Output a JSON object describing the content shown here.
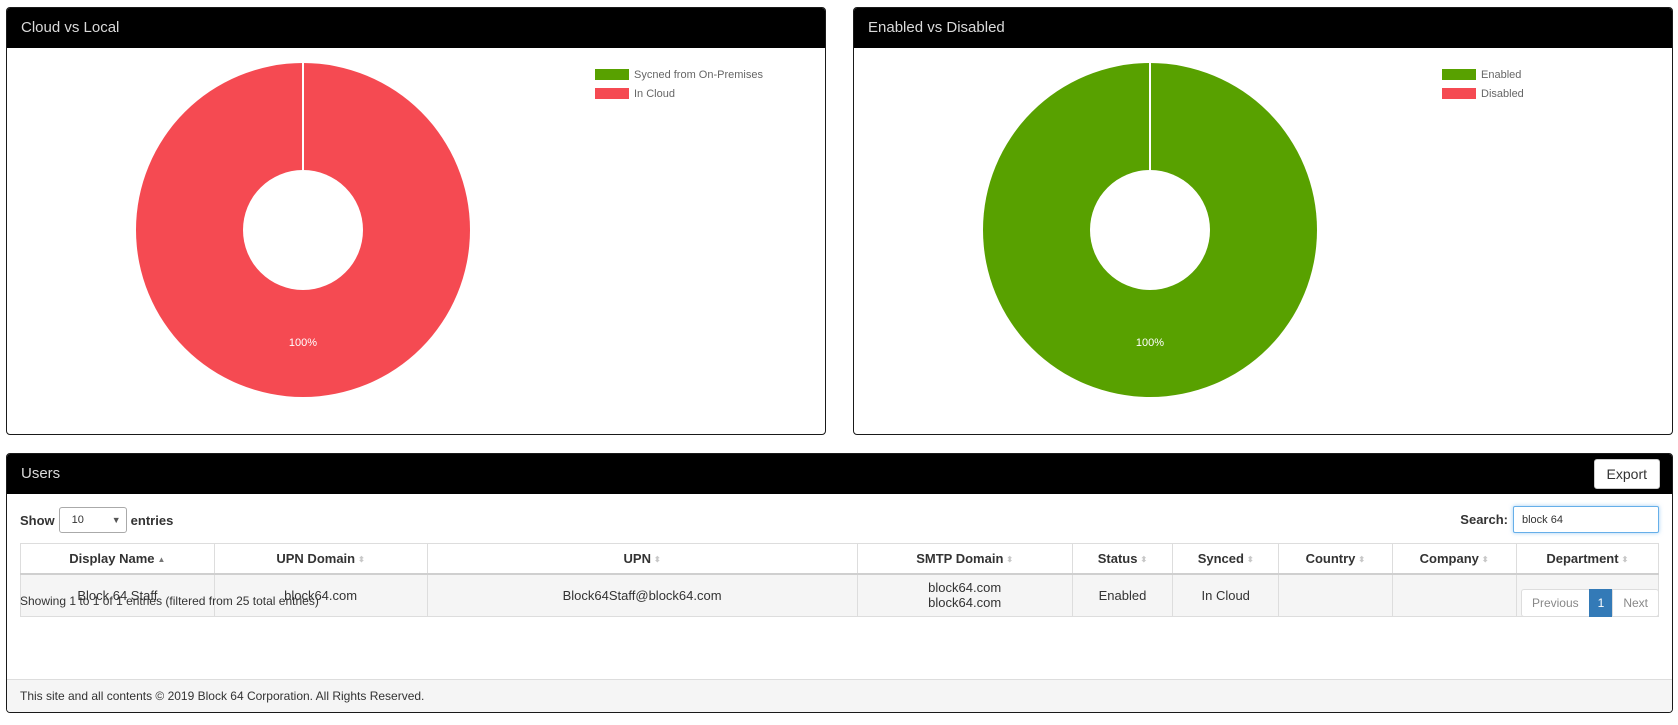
{
  "panels": {
    "cloud_vs_local": {
      "title": "Cloud vs Local"
    },
    "enabled_vs_disabled": {
      "title": "Enabled vs Disabled"
    },
    "users": {
      "title": "Users",
      "export_label": "Export"
    }
  },
  "chart_data": [
    {
      "type": "pie",
      "title": "Cloud vs Local",
      "categories": [
        "Sycned from On-Premises",
        "In Cloud"
      ],
      "values": [
        0,
        100
      ],
      "colors": [
        "#58a100",
        "#f54a52"
      ],
      "slice_label": "100%",
      "legend_position": "top-right"
    },
    {
      "type": "pie",
      "title": "Enabled vs Disabled",
      "categories": [
        "Enabled",
        "Disabled"
      ],
      "values": [
        100,
        0
      ],
      "colors": [
        "#58a100",
        "#f54a52"
      ],
      "slice_label": "100%",
      "legend_position": "top-right"
    }
  ],
  "table_controls": {
    "show_label": "Show",
    "entries_value": "10",
    "entries_label": "entries",
    "search_label": "Search:",
    "search_value": "block 64"
  },
  "table": {
    "columns": [
      "Display Name",
      "UPN Domain",
      "UPN",
      "SMTP Domain",
      "Status",
      "Synced",
      "Country",
      "Company",
      "Department"
    ],
    "rows": [
      {
        "display_name": "Block 64 Staff",
        "upn_domain": "block64.com",
        "upn": "Block64Staff@block64.com",
        "smtp_domain_1": "block64.com",
        "smtp_domain_2": "block64.com",
        "status": "Enabled",
        "synced": "In Cloud",
        "country": "",
        "company": "",
        "department": ""
      }
    ]
  },
  "table_info": "Showing 1 to 1 of 1 entries (filtered from 25 total entries)",
  "pagination": {
    "previous": "Previous",
    "current": "1",
    "next": "Next"
  },
  "footer": "This site and all contents © 2019 Block 64 Corporation. All Rights Reserved.",
  "colors": {
    "header_bg": "#000000",
    "accent_blue": "#337ab7",
    "green": "#58a100",
    "red": "#f54a52"
  }
}
